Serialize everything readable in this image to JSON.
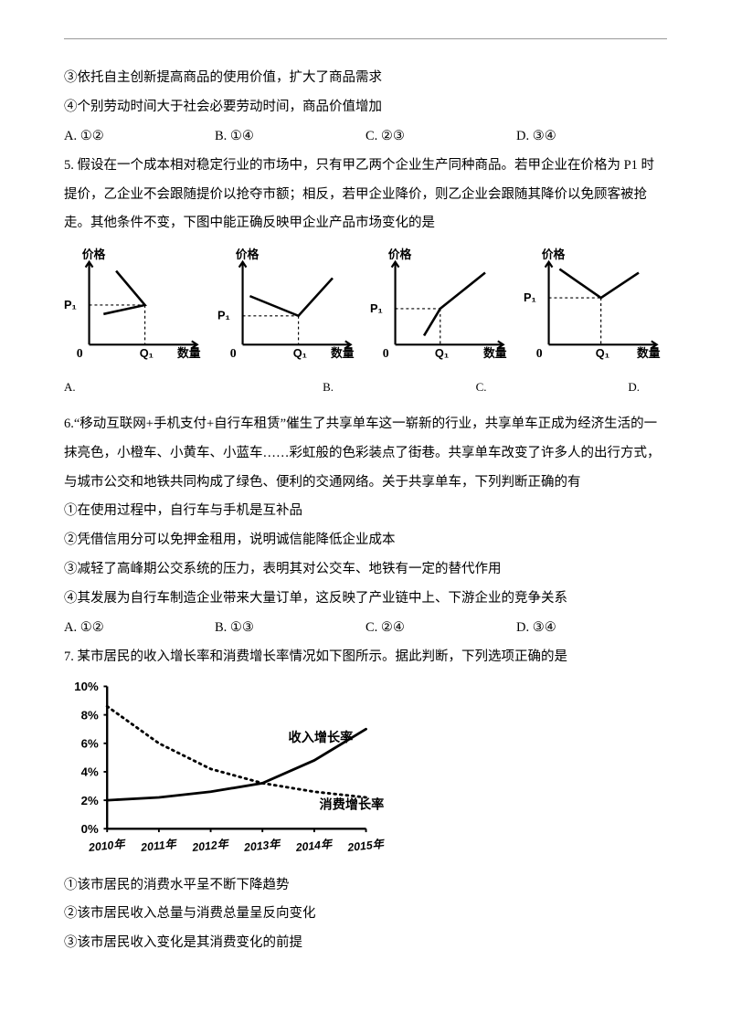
{
  "pre": {
    "l3": "③依托自主创新提高商品的使用价值，扩大了商品需求",
    "l4": "④个别劳动时间大于社会必要劳动时间，商品价值增加",
    "opts": {
      "a": "A.  ①②",
      "b": "B.  ①④",
      "c": "C.  ②③",
      "d": "D.  ③④"
    }
  },
  "q5": {
    "text": "5.  假设在一个成本相对稳定行业的市场中，只有甲乙两个企业生产同种商品。若甲企业在价格为 P1 时提价，乙企业不会跟随提价以抢夺市额；相反，若甲企业降价，则乙企业会跟随其降价以免顾客被抢走。其他条件不变，下图中能正确反映甲企业产品市场变化的是",
    "axis_y": "价格",
    "axis_x": "数量",
    "p": "P₁",
    "q": "Q₁",
    "labels": {
      "a": "A.",
      "b": "B.",
      "c": "C.",
      "d": "D."
    },
    "style": {
      "stroke": "#000000",
      "thin": 1.2,
      "thick": 2.2,
      "dash": "3,3",
      "bg": "#ffffff"
    }
  },
  "q6": {
    "text": "6.“移动互联网+手机支付+自行车租赁”催生了共享单车这一崭新的行业，共享单车正成为经济生活的一抹亮色，小橙车、小黄车、小蓝车……彩虹般的色彩装点了街巷。共享单车改变了许多人的出行方式，与城市公交和地铁共同构成了绿色、便利的交通网络。关于共享单车，下列判断正确的有",
    "s1": "①在使用过程中，自行车与手机是互补品",
    "s2": "②凭借信用分可以免押金租用，说明诚信能降低企业成本",
    "s3": "③减轻了高峰期公交系统的压力，表明其对公交车、地铁有一定的替代作用",
    "s4": "④其发展为自行车制造企业带来大量订单，这反映了产业链中上、下游企业的竞争关系",
    "opts": {
      "a": "A.  ①②",
      "b": "B.  ①③",
      "c": "C.  ②④",
      "d": "D.  ③④"
    }
  },
  "q7": {
    "text": "7.  某市居民的收入增长率和消费增长率情况如下图所示。据此判断，下列选项正确的是",
    "chart": {
      "type": "line",
      "ylim": [
        0,
        10
      ],
      "ytick_step": 2,
      "y_suffix": "%",
      "xticks": [
        "2010年",
        "2011年",
        "2012年",
        "2013年",
        "2014年",
        "2015年"
      ],
      "series": [
        {
          "name": "收入增长率",
          "style": "solid",
          "thick": 3,
          "values": [
            2.0,
            2.2,
            2.6,
            3.2,
            4.8,
            7.0
          ]
        },
        {
          "name": "消费增长率",
          "style": "dotted",
          "thick": 3,
          "values": [
            8.6,
            6.0,
            4.2,
            3.2,
            2.6,
            2.2
          ]
        }
      ],
      "colors": {
        "line": "#000000",
        "bg": "#ffffff"
      },
      "label_fontsize": 14
    },
    "s1": "①该市居民的消费水平呈不断下降趋势",
    "s2": "②该市居民收入总量与消费总量呈反向变化",
    "s3": "③该市居民收入变化是其消费变化的前提"
  }
}
